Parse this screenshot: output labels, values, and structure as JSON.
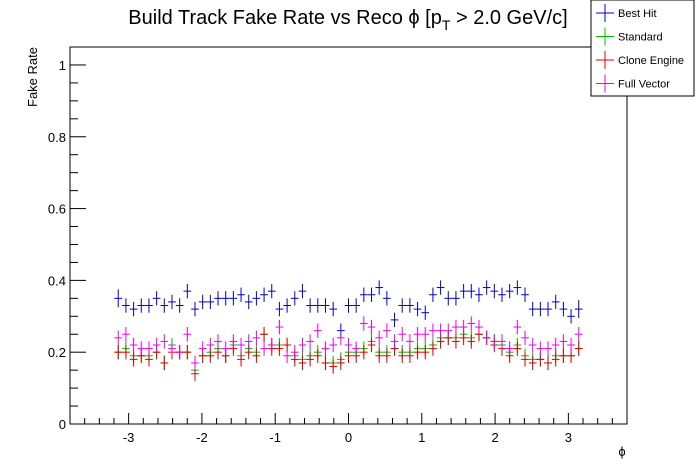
{
  "chart_data": {
    "type": "scatter",
    "title": "Build Track Fake Rate vs Reco ϕ [p_T > 2.0 GeV/c]",
    "title_parts": {
      "main": "Build Track Fake Rate vs Reco ϕ [p",
      "sub": "T",
      "rest": " > 2.0 GeV/c]"
    },
    "xlabel": "ϕ",
    "ylabel": "Fake Rate",
    "xlim": [
      -3.8,
      3.8
    ],
    "ylim": [
      0,
      1.05
    ],
    "x_ticks": [
      -3,
      -2,
      -1,
      0,
      1,
      2,
      3
    ],
    "x_tick_labels": [
      "-3",
      "-2",
      "-1",
      "0",
      "1",
      "2",
      "3"
    ],
    "y_ticks": [
      0,
      0.2,
      0.4,
      0.6,
      0.8,
      1
    ],
    "y_tick_labels": [
      "0",
      "0.2",
      "0.4",
      "0.6",
      "0.8",
      "1"
    ],
    "legend_position": "top-right",
    "x": [
      -3.1416,
      -3.0369,
      -2.9322,
      -2.8274,
      -2.7227,
      -2.618,
      -2.5133,
      -2.4086,
      -2.3038,
      -2.1991,
      -2.0944,
      -1.9897,
      -1.885,
      -1.7802,
      -1.6755,
      -1.5708,
      -1.4661,
      -1.3614,
      -1.2566,
      -1.1519,
      -1.0472,
      -0.9425,
      -0.8378,
      -0.733,
      -0.6283,
      -0.5236,
      -0.4189,
      -0.3142,
      -0.2094,
      -0.1047,
      0.0,
      0.1047,
      0.2094,
      0.3142,
      0.4189,
      0.5236,
      0.6283,
      0.733,
      0.8378,
      0.9425,
      1.0472,
      1.1519,
      1.2566,
      1.3614,
      1.4661,
      1.5708,
      1.6755,
      1.7802,
      1.885,
      1.9897,
      2.0944,
      2.1991,
      2.3038,
      2.4086,
      2.5133,
      2.618,
      2.7227,
      2.8274,
      2.9322,
      3.0369,
      3.1416
    ],
    "series": [
      {
        "name": "Best Hit",
        "color": "#0000cc",
        "values": [
          0.35,
          0.33,
          0.32,
          0.33,
          0.33,
          0.35,
          0.33,
          0.34,
          0.33,
          0.37,
          0.32,
          0.34,
          0.34,
          0.35,
          0.35,
          0.35,
          0.36,
          0.34,
          0.35,
          0.36,
          0.37,
          0.32,
          0.33,
          0.35,
          0.37,
          0.33,
          0.33,
          0.33,
          0.32,
          0.26,
          0.33,
          0.33,
          0.36,
          0.36,
          0.38,
          0.35,
          0.29,
          0.33,
          0.33,
          0.32,
          0.31,
          0.36,
          0.38,
          0.35,
          0.35,
          0.37,
          0.37,
          0.36,
          0.38,
          0.37,
          0.36,
          0.37,
          0.38,
          0.36,
          0.32,
          0.32,
          0.32,
          0.34,
          0.32,
          0.3,
          0.32
        ],
        "errors": [
          0.025,
          0.02,
          0.02,
          0.02,
          0.02,
          0.02,
          0.02,
          0.02,
          0.02,
          0.02,
          0.02,
          0.02,
          0.02,
          0.02,
          0.02,
          0.02,
          0.02,
          0.02,
          0.02,
          0.02,
          0.02,
          0.02,
          0.02,
          0.02,
          0.02,
          0.02,
          0.02,
          0.02,
          0.02,
          0.02,
          0.02,
          0.02,
          0.02,
          0.02,
          0.02,
          0.02,
          0.02,
          0.02,
          0.02,
          0.02,
          0.02,
          0.02,
          0.02,
          0.02,
          0.02,
          0.02,
          0.02,
          0.02,
          0.02,
          0.02,
          0.02,
          0.02,
          0.02,
          0.02,
          0.02,
          0.02,
          0.02,
          0.02,
          0.02,
          0.02,
          0.025
        ]
      },
      {
        "name": "Standard",
        "color": "#00bb00",
        "values": [
          0.2,
          0.21,
          0.19,
          0.19,
          0.19,
          0.2,
          0.17,
          0.22,
          0.2,
          0.2,
          0.15,
          0.19,
          0.2,
          0.21,
          0.19,
          0.22,
          0.19,
          0.21,
          0.2,
          0.25,
          0.22,
          0.22,
          0.22,
          0.19,
          0.18,
          0.19,
          0.2,
          0.17,
          0.17,
          0.18,
          0.2,
          0.2,
          0.21,
          0.23,
          0.2,
          0.2,
          0.21,
          0.2,
          0.2,
          0.21,
          0.21,
          0.22,
          0.24,
          0.24,
          0.24,
          0.25,
          0.24,
          0.25,
          0.24,
          0.23,
          0.22,
          0.2,
          0.22,
          0.19,
          0.18,
          0.18,
          0.17,
          0.19,
          0.19,
          0.19,
          0.21
        ],
        "errors": [
          0.02,
          0.02,
          0.02,
          0.02,
          0.02,
          0.02,
          0.02,
          0.02,
          0.02,
          0.02,
          0.02,
          0.02,
          0.02,
          0.02,
          0.02,
          0.02,
          0.02,
          0.02,
          0.02,
          0.02,
          0.02,
          0.02,
          0.02,
          0.02,
          0.02,
          0.02,
          0.02,
          0.02,
          0.02,
          0.02,
          0.02,
          0.02,
          0.02,
          0.02,
          0.02,
          0.02,
          0.02,
          0.02,
          0.02,
          0.02,
          0.02,
          0.02,
          0.02,
          0.02,
          0.02,
          0.02,
          0.02,
          0.02,
          0.02,
          0.02,
          0.02,
          0.02,
          0.02,
          0.02,
          0.02,
          0.02,
          0.02,
          0.02,
          0.02,
          0.02,
          0.02
        ]
      },
      {
        "name": "Clone Engine",
        "color": "#dd0000",
        "values": [
          0.2,
          0.2,
          0.18,
          0.19,
          0.18,
          0.2,
          0.17,
          0.2,
          0.2,
          0.2,
          0.14,
          0.19,
          0.19,
          0.2,
          0.19,
          0.21,
          0.18,
          0.2,
          0.19,
          0.25,
          0.21,
          0.21,
          0.22,
          0.18,
          0.17,
          0.18,
          0.19,
          0.17,
          0.16,
          0.17,
          0.19,
          0.19,
          0.2,
          0.22,
          0.19,
          0.19,
          0.21,
          0.19,
          0.19,
          0.2,
          0.2,
          0.21,
          0.23,
          0.24,
          0.23,
          0.24,
          0.23,
          0.25,
          0.24,
          0.22,
          0.21,
          0.19,
          0.21,
          0.18,
          0.17,
          0.18,
          0.17,
          0.18,
          0.19,
          0.19,
          0.21
        ],
        "errors": [
          0.02,
          0.02,
          0.02,
          0.02,
          0.02,
          0.02,
          0.02,
          0.02,
          0.02,
          0.02,
          0.02,
          0.02,
          0.02,
          0.02,
          0.02,
          0.02,
          0.02,
          0.02,
          0.02,
          0.02,
          0.02,
          0.02,
          0.02,
          0.02,
          0.02,
          0.02,
          0.02,
          0.02,
          0.02,
          0.02,
          0.02,
          0.02,
          0.02,
          0.02,
          0.02,
          0.02,
          0.02,
          0.02,
          0.02,
          0.02,
          0.02,
          0.02,
          0.02,
          0.02,
          0.02,
          0.02,
          0.02,
          0.02,
          0.02,
          0.02,
          0.02,
          0.02,
          0.02,
          0.02,
          0.02,
          0.02,
          0.02,
          0.02,
          0.02,
          0.02,
          0.02
        ]
      },
      {
        "name": "Full Vector",
        "color": "#ee00ee",
        "values": [
          0.24,
          0.25,
          0.22,
          0.21,
          0.21,
          0.22,
          0.23,
          0.21,
          0.2,
          0.25,
          0.17,
          0.21,
          0.22,
          0.23,
          0.21,
          0.23,
          0.22,
          0.23,
          0.24,
          0.21,
          0.22,
          0.27,
          0.19,
          0.2,
          0.22,
          0.23,
          0.26,
          0.21,
          0.22,
          0.24,
          0.22,
          0.21,
          0.28,
          0.27,
          0.24,
          0.26,
          0.23,
          0.25,
          0.23,
          0.25,
          0.25,
          0.26,
          0.26,
          0.26,
          0.27,
          0.27,
          0.28,
          0.27,
          0.24,
          0.23,
          0.23,
          0.21,
          0.27,
          0.24,
          0.22,
          0.21,
          0.21,
          0.22,
          0.23,
          0.22,
          0.25
        ],
        "errors": [
          0.02,
          0.02,
          0.02,
          0.02,
          0.02,
          0.02,
          0.02,
          0.02,
          0.02,
          0.02,
          0.02,
          0.02,
          0.02,
          0.02,
          0.02,
          0.02,
          0.02,
          0.02,
          0.02,
          0.02,
          0.02,
          0.02,
          0.02,
          0.02,
          0.02,
          0.02,
          0.02,
          0.02,
          0.02,
          0.02,
          0.02,
          0.02,
          0.02,
          0.02,
          0.02,
          0.02,
          0.02,
          0.02,
          0.02,
          0.02,
          0.02,
          0.02,
          0.02,
          0.02,
          0.02,
          0.02,
          0.02,
          0.02,
          0.02,
          0.02,
          0.02,
          0.02,
          0.02,
          0.02,
          0.02,
          0.02,
          0.02,
          0.02,
          0.02,
          0.02,
          0.02
        ]
      }
    ]
  }
}
